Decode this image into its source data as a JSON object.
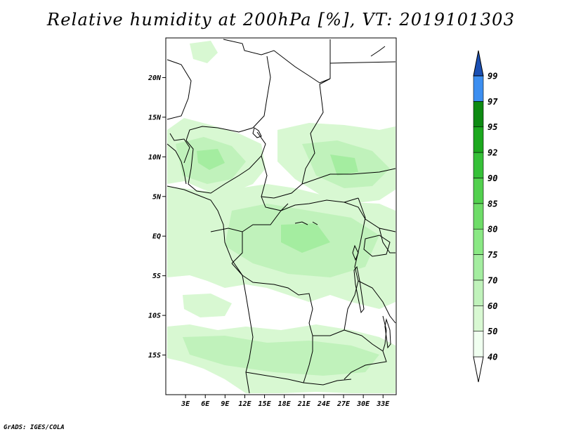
{
  "title": "Relative humidity at 200hPa [%], VT: 2019101303",
  "credit": "GrADS: IGES/COLA",
  "map": {
    "lon_range": [
      0,
      35
    ],
    "lat_range": [
      -20,
      25
    ],
    "lat_ticks": [
      {
        "value": 20,
        "label": "20N"
      },
      {
        "value": 15,
        "label": "15N"
      },
      {
        "value": 10,
        "label": "10N"
      },
      {
        "value": 5,
        "label": "5N"
      },
      {
        "value": 0,
        "label": "EQ"
      },
      {
        "value": -5,
        "label": "5S"
      },
      {
        "value": -10,
        "label": "10S"
      },
      {
        "value": -15,
        "label": "15S"
      }
    ],
    "lon_ticks": [
      {
        "value": 3,
        "label": "3E"
      },
      {
        "value": 6,
        "label": "6E"
      },
      {
        "value": 9,
        "label": "9E"
      },
      {
        "value": 12,
        "label": "12E"
      },
      {
        "value": 15,
        "label": "15E"
      },
      {
        "value": 18,
        "label": "18E"
      },
      {
        "value": 21,
        "label": "21E"
      },
      {
        "value": 24,
        "label": "24E"
      },
      {
        "value": 27,
        "label": "27E"
      },
      {
        "value": 30,
        "label": "30E"
      },
      {
        "value": 33,
        "label": "33E"
      }
    ]
  },
  "colorbar": {
    "levels": [
      "40",
      "50",
      "60",
      "70",
      "75",
      "80",
      "85",
      "90",
      "92",
      "95",
      "97",
      "99"
    ],
    "colors": [
      "#f0fff0",
      "#d8f8d2",
      "#c0f2bb",
      "#a4eda0",
      "#8ae884",
      "#6edc68",
      "#52d04e",
      "#36c038",
      "#1ca81e",
      "#0d8a12",
      "#3c8ef0",
      "#1f66d9",
      "#1a4fb3"
    ],
    "below_color": "#ffffff",
    "above_color": "#1a4fb3"
  },
  "field_colors": {
    "light": "#d8f8d2",
    "mid": "#c0f2bb",
    "dark": "#a4eda0"
  }
}
